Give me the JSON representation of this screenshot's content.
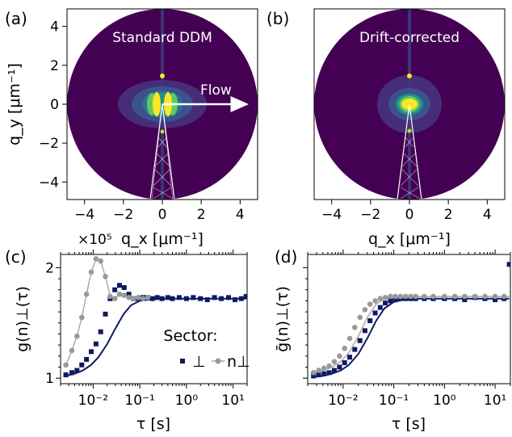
{
  "chart_data": [
    {
      "panel": "(a)",
      "type": "heatmap",
      "title": "Standard DDM",
      "xlabel": "q_x [μm⁻¹]",
      "ylabel": "q_y [μm⁻¹]",
      "xlim": [
        -4.9,
        4.9
      ],
      "ylim": [
        -4.9,
        4.9
      ],
      "xticks": [
        -4,
        -2,
        0,
        2,
        4
      ],
      "yticks": [
        -4,
        -2,
        0,
        2,
        4
      ],
      "xtick_labels": [
        "−4",
        "−2",
        "0",
        "2",
        "4"
      ],
      "ytick_labels": [
        "−4",
        "−2",
        "0",
        "2",
        "4"
      ],
      "annotation": "Flow",
      "arrow": {
        "from": [
          0,
          0
        ],
        "to": [
          4.0,
          0
        ]
      },
      "sector_lines": [
        [
          [
            0,
            0
          ],
          [
            -0.6,
            -4.9
          ]
        ],
        [
          [
            0,
            0
          ],
          [
            0.6,
            -4.9
          ]
        ]
      ],
      "disk_radius": 4.9,
      "colors": {
        "background": "#440154",
        "mid": "#21918c",
        "high": "#5ec962",
        "peak": "#fde725"
      }
    },
    {
      "panel": "(b)",
      "type": "heatmap",
      "title": "Drift-corrected",
      "xlabel": "q_x [μm⁻¹]",
      "ylabel": "",
      "xlim": [
        -4.9,
        4.9
      ],
      "ylim": [
        -4.9,
        4.9
      ],
      "xticks": [
        -4,
        -2,
        0,
        2,
        4
      ],
      "xtick_labels": [
        "−4",
        "−2",
        "0",
        "2",
        "4"
      ],
      "sector_lines": [
        [
          [
            0,
            0
          ],
          [
            -0.6,
            -4.9
          ]
        ],
        [
          [
            0,
            0
          ],
          [
            0.6,
            -4.9
          ]
        ]
      ],
      "disk_radius": 4.9,
      "colors": {
        "background": "#440154",
        "mid": "#21918c",
        "high": "#5ec962",
        "peak": "#fde725"
      }
    },
    {
      "panel": "(c)",
      "type": "scatter",
      "x_scale": "log",
      "xlim": [
        0.002,
        20
      ],
      "ylim": [
        0.95,
        2.12
      ],
      "xticks": [
        0.01,
        0.1,
        1,
        10
      ],
      "xtick_labels": [
        "10⁻²",
        "10⁻¹",
        "10⁰",
        "10¹"
      ],
      "yticks": [
        1,
        2
      ],
      "ytick_labels": [
        "1",
        "2"
      ],
      "offset_text": "×10⁵",
      "xlabel": "τ [s]",
      "ylabel": "g(n)⊥(τ)",
      "legend": {
        "title": "Sector:",
        "placement": "lower-right",
        "entries": [
          "⊥",
          "n⊥"
        ]
      },
      "series": [
        {
          "name": "⊥",
          "color": "#0d1a63",
          "marker": "square",
          "x": [
            0.0026,
            0.0035,
            0.0045,
            0.0057,
            0.0072,
            0.0091,
            0.0115,
            0.0145,
            0.0183,
            0.0231,
            0.0291,
            0.0367,
            0.0463,
            0.0584,
            0.0737,
            0.093,
            0.117,
            0.148,
            0.187,
            0.236,
            0.3,
            0.4,
            0.5,
            0.7,
            1.0,
            1.4,
            2.0,
            2.8,
            4.0,
            5.6,
            8.0,
            11,
            15,
            19
          ],
          "y": [
            1.03,
            1.05,
            1.07,
            1.12,
            1.17,
            1.24,
            1.31,
            1.42,
            1.58,
            1.72,
            1.8,
            1.84,
            1.82,
            1.76,
            1.72,
            1.72,
            1.73,
            1.73,
            1.72,
            1.73,
            1.72,
            1.73,
            1.72,
            1.73,
            1.72,
            1.73,
            1.72,
            1.71,
            1.73,
            1.72,
            1.73,
            1.71,
            1.72,
            1.74
          ]
        },
        {
          "name": "n⊥",
          "color": "#999999",
          "marker": "circle",
          "x": [
            0.0026,
            0.0035,
            0.0045,
            0.0057,
            0.0072,
            0.0091,
            0.0115,
            0.0145,
            0.0183,
            0.0231,
            0.0291,
            0.0367,
            0.0463,
            0.0584,
            0.0737,
            0.093,
            0.117,
            0.148
          ],
          "y": [
            1.12,
            1.25,
            1.38,
            1.55,
            1.76,
            1.96,
            2.08,
            2.06,
            1.92,
            1.74,
            1.72,
            1.76,
            1.75,
            1.73,
            1.72,
            1.73,
            1.72,
            1.73
          ]
        }
      ],
      "fit_line": {
        "color": "#0d1a63",
        "x": [
          0.0026,
          0.004,
          0.006,
          0.009,
          0.013,
          0.02,
          0.03,
          0.045,
          0.065,
          0.1,
          0.15,
          0.25,
          0.5,
          1,
          2,
          5,
          10,
          19
        ],
        "y": [
          1.02,
          1.04,
          1.07,
          1.12,
          1.19,
          1.31,
          1.45,
          1.58,
          1.66,
          1.7,
          1.71,
          1.72,
          1.72,
          1.72,
          1.72,
          1.72,
          1.72,
          1.72
        ]
      }
    },
    {
      "panel": "(d)",
      "type": "scatter",
      "x_scale": "log",
      "xlim": [
        0.002,
        20
      ],
      "ylim": [
        0.95,
        2.12
      ],
      "xticks": [
        0.01,
        0.1,
        1,
        10
      ],
      "xtick_labels": [
        "10⁻²",
        "10⁻¹",
        "10⁰",
        "10¹"
      ],
      "yticks": [
        1,
        2
      ],
      "xlabel": "τ [s]",
      "ylabel": "ḡ(n)⊥(τ)",
      "series": [
        {
          "name": "⊥",
          "color": "#0d1a63",
          "marker": "square",
          "x": [
            0.0026,
            0.0033,
            0.0042,
            0.0053,
            0.0067,
            0.0085,
            0.0107,
            0.0135,
            0.017,
            0.0215,
            0.027,
            0.034,
            0.043,
            0.054,
            0.068,
            0.086,
            0.108,
            0.136,
            0.171,
            0.216,
            0.27,
            0.4,
            0.6,
            1.0,
            1.6,
            2.5,
            4.0,
            6.3,
            10,
            15,
            19
          ],
          "y": [
            1.02,
            1.03,
            1.04,
            1.05,
            1.07,
            1.1,
            1.14,
            1.19,
            1.26,
            1.34,
            1.43,
            1.52,
            1.59,
            1.64,
            1.68,
            1.7,
            1.71,
            1.72,
            1.72,
            1.72,
            1.72,
            1.72,
            1.72,
            1.72,
            1.72,
            1.71,
            1.73,
            1.72,
            1.71,
            1.72,
            2.03
          ]
        },
        {
          "name": "n⊥",
          "color": "#999999",
          "marker": "circle",
          "x": [
            0.0026,
            0.0033,
            0.0042,
            0.0053,
            0.0067,
            0.0085,
            0.0107,
            0.0135,
            0.017,
            0.0215,
            0.027,
            0.034,
            0.043,
            0.054,
            0.068,
            0.086,
            0.108,
            0.136,
            0.171,
            0.216,
            0.27,
            0.4,
            0.6,
            1.0,
            1.6,
            2.5,
            4.0,
            6.3,
            10,
            15
          ],
          "y": [
            1.05,
            1.07,
            1.09,
            1.11,
            1.15,
            1.2,
            1.27,
            1.36,
            1.46,
            1.55,
            1.62,
            1.67,
            1.7,
            1.72,
            1.73,
            1.74,
            1.74,
            1.74,
            1.74,
            1.74,
            1.74,
            1.74,
            1.74,
            1.74,
            1.74,
            1.74,
            1.74,
            1.74,
            1.74,
            1.74
          ]
        }
      ],
      "fit_lines": [
        {
          "color": "#0d1a63",
          "x": [
            0.0026,
            0.004,
            0.006,
            0.009,
            0.013,
            0.02,
            0.03,
            0.045,
            0.065,
            0.1,
            0.15,
            0.25,
            0.5,
            1,
            2,
            5,
            10,
            19
          ],
          "y": [
            1.01,
            1.02,
            1.04,
            1.07,
            1.12,
            1.22,
            1.36,
            1.52,
            1.63,
            1.69,
            1.71,
            1.72,
            1.72,
            1.72,
            1.72,
            1.72,
            1.72,
            1.72
          ]
        },
        {
          "color": "#bbbbbb",
          "x": [
            0.0026,
            0.004,
            0.006,
            0.009,
            0.013,
            0.02,
            0.03,
            0.045,
            0.065,
            0.1,
            0.15,
            0.25,
            0.5,
            1,
            2,
            5,
            10,
            19
          ],
          "y": [
            1.05,
            1.07,
            1.1,
            1.15,
            1.23,
            1.38,
            1.55,
            1.67,
            1.72,
            1.73,
            1.74,
            1.74,
            1.74,
            1.74,
            1.74,
            1.74,
            1.74,
            1.74
          ]
        }
      ]
    }
  ]
}
